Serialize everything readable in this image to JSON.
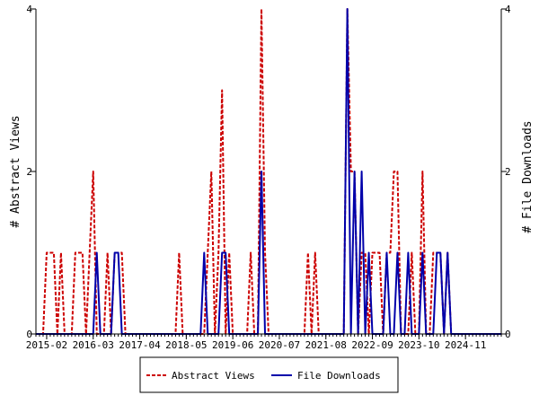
{
  "chart_data": {
    "type": "line",
    "x_axis": {
      "tick_labels": [
        "2015-02",
        "2016-03",
        "2017-04",
        "2018-05",
        "2019-06",
        "2020-07",
        "2021-08",
        "2022-09",
        "2023-10",
        "2024-11"
      ],
      "start": "2014-11",
      "end": "2025-09"
    },
    "y_left": {
      "label": "# Abstract Views",
      "ylim": [
        0,
        4
      ],
      "ticks": [
        0,
        2,
        4
      ]
    },
    "y_right": {
      "label": "# File Downloads",
      "ylim": [
        0,
        4
      ],
      "ticks": [
        0,
        2,
        4
      ]
    },
    "grid": false,
    "legend": {
      "placement": "bottom-center"
    },
    "series": [
      {
        "name": "Abstract Views",
        "axis": "left",
        "color": "#cc0000",
        "style": "dashed",
        "points": [
          [
            "2014-11",
            0
          ],
          [
            "2014-12",
            0
          ],
          [
            "2015-01",
            0
          ],
          [
            "2015-02",
            1
          ],
          [
            "2015-03",
            1
          ],
          [
            "2015-04",
            1
          ],
          [
            "2015-05",
            0
          ],
          [
            "2015-06",
            1
          ],
          [
            "2015-07",
            0
          ],
          [
            "2015-08",
            0
          ],
          [
            "2015-09",
            0
          ],
          [
            "2015-10",
            1
          ],
          [
            "2015-11",
            1
          ],
          [
            "2015-12",
            1
          ],
          [
            "2016-01",
            0
          ],
          [
            "2016-02",
            1
          ],
          [
            "2016-03",
            2
          ],
          [
            "2016-04",
            0
          ],
          [
            "2016-05",
            0
          ],
          [
            "2016-06",
            0
          ],
          [
            "2016-07",
            1
          ],
          [
            "2016-08",
            0
          ],
          [
            "2016-09",
            1
          ],
          [
            "2016-10",
            1
          ],
          [
            "2016-11",
            1
          ],
          [
            "2016-12",
            0
          ],
          [
            "2017-01",
            0
          ],
          [
            "2017-02",
            0
          ],
          [
            "2017-03",
            0
          ],
          [
            "2017-04",
            0
          ],
          [
            "2017-05",
            0
          ],
          [
            "2017-06",
            0
          ],
          [
            "2017-07",
            0
          ],
          [
            "2017-08",
            0
          ],
          [
            "2017-09",
            0
          ],
          [
            "2017-10",
            0
          ],
          [
            "2017-11",
            0
          ],
          [
            "2017-12",
            0
          ],
          [
            "2018-01",
            0
          ],
          [
            "2018-02",
            0
          ],
          [
            "2018-03",
            1
          ],
          [
            "2018-04",
            0
          ],
          [
            "2018-05",
            0
          ],
          [
            "2018-06",
            0
          ],
          [
            "2018-07",
            0
          ],
          [
            "2018-08",
            0
          ],
          [
            "2018-09",
            0
          ],
          [
            "2018-10",
            0
          ],
          [
            "2018-11",
            1
          ],
          [
            "2018-12",
            2
          ],
          [
            "2019-01",
            0
          ],
          [
            "2019-02",
            1
          ],
          [
            "2019-03",
            3
          ],
          [
            "2019-04",
            0
          ],
          [
            "2019-05",
            1
          ],
          [
            "2019-06",
            0
          ],
          [
            "2019-07",
            0
          ],
          [
            "2019-08",
            0
          ],
          [
            "2019-09",
            0
          ],
          [
            "2019-10",
            0
          ],
          [
            "2019-11",
            1
          ],
          [
            "2019-12",
            0
          ],
          [
            "2020-01",
            0
          ],
          [
            "2020-02",
            4
          ],
          [
            "2020-03",
            1
          ],
          [
            "2020-04",
            0
          ],
          [
            "2020-05",
            0
          ],
          [
            "2020-06",
            0
          ],
          [
            "2020-07",
            0
          ],
          [
            "2020-08",
            0
          ],
          [
            "2020-09",
            0
          ],
          [
            "2020-10",
            0
          ],
          [
            "2020-11",
            0
          ],
          [
            "2020-12",
            0
          ],
          [
            "2021-01",
            0
          ],
          [
            "2021-02",
            0
          ],
          [
            "2021-03",
            1
          ],
          [
            "2021-04",
            0
          ],
          [
            "2021-05",
            1
          ],
          [
            "2021-06",
            0
          ],
          [
            "2021-07",
            0
          ],
          [
            "2021-08",
            0
          ],
          [
            "2021-09",
            0
          ],
          [
            "2021-10",
            0
          ],
          [
            "2021-11",
            0
          ],
          [
            "2021-12",
            0
          ],
          [
            "2022-01",
            0
          ],
          [
            "2022-02",
            4
          ],
          [
            "2022-03",
            2
          ],
          [
            "2022-04",
            2
          ],
          [
            "2022-05",
            0
          ],
          [
            "2022-06",
            1
          ],
          [
            "2022-07",
            1
          ],
          [
            "2022-08",
            0
          ],
          [
            "2022-09",
            1
          ],
          [
            "2022-10",
            1
          ],
          [
            "2022-11",
            1
          ],
          [
            "2022-12",
            0
          ],
          [
            "2023-01",
            1
          ],
          [
            "2023-02",
            1
          ],
          [
            "2023-03",
            2
          ],
          [
            "2023-04",
            2
          ],
          [
            "2023-05",
            0
          ],
          [
            "2023-06",
            0
          ],
          [
            "2023-07",
            0
          ],
          [
            "2023-08",
            1
          ],
          [
            "2023-09",
            0
          ],
          [
            "2023-10",
            0
          ],
          [
            "2023-11",
            2
          ],
          [
            "2023-12",
            0
          ],
          [
            "2024-01",
            0
          ],
          [
            "2024-02",
            1
          ],
          [
            "2024-03",
            1
          ],
          [
            "2024-04",
            1
          ],
          [
            "2024-05",
            0
          ],
          [
            "2024-06",
            1
          ],
          [
            "2024-07",
            0
          ],
          [
            "2024-08",
            0
          ],
          [
            "2024-09",
            0
          ],
          [
            "2024-10",
            0
          ],
          [
            "2024-11",
            0
          ],
          [
            "2024-12",
            0
          ],
          [
            "2025-01",
            0
          ],
          [
            "2025-02",
            0
          ],
          [
            "2025-03",
            0
          ],
          [
            "2025-04",
            0
          ],
          [
            "2025-05",
            0
          ],
          [
            "2025-06",
            0
          ],
          [
            "2025-07",
            0
          ],
          [
            "2025-08",
            0
          ],
          [
            "2025-09",
            0
          ]
        ]
      },
      {
        "name": "File Downloads",
        "axis": "right",
        "color": "#0000aa",
        "style": "solid",
        "points": [
          [
            "2014-11",
            0
          ],
          [
            "2014-12",
            0
          ],
          [
            "2015-01",
            0
          ],
          [
            "2015-02",
            0
          ],
          [
            "2015-03",
            0
          ],
          [
            "2015-04",
            0
          ],
          [
            "2015-05",
            0
          ],
          [
            "2015-06",
            0
          ],
          [
            "2015-07",
            0
          ],
          [
            "2015-08",
            0
          ],
          [
            "2015-09",
            0
          ],
          [
            "2015-10",
            0
          ],
          [
            "2015-11",
            0
          ],
          [
            "2015-12",
            0
          ],
          [
            "2016-01",
            0
          ],
          [
            "2016-02",
            0
          ],
          [
            "2016-03",
            0
          ],
          [
            "2016-04",
            1
          ],
          [
            "2016-05",
            0
          ],
          [
            "2016-06",
            0
          ],
          [
            "2016-07",
            0
          ],
          [
            "2016-08",
            0
          ],
          [
            "2016-09",
            1
          ],
          [
            "2016-10",
            1
          ],
          [
            "2016-11",
            0
          ],
          [
            "2016-12",
            0
          ],
          [
            "2017-01",
            0
          ],
          [
            "2017-02",
            0
          ],
          [
            "2017-03",
            0
          ],
          [
            "2017-04",
            0
          ],
          [
            "2017-05",
            0
          ],
          [
            "2017-06",
            0
          ],
          [
            "2017-07",
            0
          ],
          [
            "2017-08",
            0
          ],
          [
            "2017-09",
            0
          ],
          [
            "2017-10",
            0
          ],
          [
            "2017-11",
            0
          ],
          [
            "2017-12",
            0
          ],
          [
            "2018-01",
            0
          ],
          [
            "2018-02",
            0
          ],
          [
            "2018-03",
            0
          ],
          [
            "2018-04",
            0
          ],
          [
            "2018-05",
            0
          ],
          [
            "2018-06",
            0
          ],
          [
            "2018-07",
            0
          ],
          [
            "2018-08",
            0
          ],
          [
            "2018-09",
            0
          ],
          [
            "2018-10",
            1
          ],
          [
            "2018-11",
            0
          ],
          [
            "2018-12",
            0
          ],
          [
            "2019-01",
            0
          ],
          [
            "2019-02",
            0
          ],
          [
            "2019-03",
            1
          ],
          [
            "2019-04",
            1
          ],
          [
            "2019-05",
            0
          ],
          [
            "2019-06",
            0
          ],
          [
            "2019-07",
            0
          ],
          [
            "2019-08",
            0
          ],
          [
            "2019-09",
            0
          ],
          [
            "2019-10",
            0
          ],
          [
            "2019-11",
            0
          ],
          [
            "2019-12",
            0
          ],
          [
            "2020-01",
            0
          ],
          [
            "2020-02",
            2
          ],
          [
            "2020-03",
            0
          ],
          [
            "2020-04",
            0
          ],
          [
            "2020-05",
            0
          ],
          [
            "2020-06",
            0
          ],
          [
            "2020-07",
            0
          ],
          [
            "2020-08",
            0
          ],
          [
            "2020-09",
            0
          ],
          [
            "2020-10",
            0
          ],
          [
            "2020-11",
            0
          ],
          [
            "2020-12",
            0
          ],
          [
            "2021-01",
            0
          ],
          [
            "2021-02",
            0
          ],
          [
            "2021-03",
            0
          ],
          [
            "2021-04",
            0
          ],
          [
            "2021-05",
            0
          ],
          [
            "2021-06",
            0
          ],
          [
            "2021-07",
            0
          ],
          [
            "2021-08",
            0
          ],
          [
            "2021-09",
            0
          ],
          [
            "2021-10",
            0
          ],
          [
            "2021-11",
            0
          ],
          [
            "2021-12",
            0
          ],
          [
            "2022-01",
            0
          ],
          [
            "2022-02",
            4
          ],
          [
            "2022-03",
            0
          ],
          [
            "2022-04",
            2
          ],
          [
            "2022-05",
            0
          ],
          [
            "2022-06",
            2
          ],
          [
            "2022-07",
            0
          ],
          [
            "2022-08",
            1
          ],
          [
            "2022-09",
            0
          ],
          [
            "2022-10",
            0
          ],
          [
            "2022-11",
            0
          ],
          [
            "2022-12",
            0
          ],
          [
            "2023-01",
            1
          ],
          [
            "2023-02",
            0
          ],
          [
            "2023-03",
            0
          ],
          [
            "2023-04",
            1
          ],
          [
            "2023-05",
            0
          ],
          [
            "2023-06",
            0
          ],
          [
            "2023-07",
            1
          ],
          [
            "2023-08",
            0
          ],
          [
            "2023-09",
            0
          ],
          [
            "2023-10",
            0
          ],
          [
            "2023-11",
            1
          ],
          [
            "2023-12",
            0
          ],
          [
            "2024-01",
            0
          ],
          [
            "2024-02",
            0
          ],
          [
            "2024-03",
            1
          ],
          [
            "2024-04",
            1
          ],
          [
            "2024-05",
            0
          ],
          [
            "2024-06",
            1
          ],
          [
            "2024-07",
            0
          ],
          [
            "2024-08",
            0
          ],
          [
            "2024-09",
            0
          ],
          [
            "2024-10",
            0
          ],
          [
            "2024-11",
            0
          ],
          [
            "2024-12",
            0
          ],
          [
            "2025-01",
            0
          ],
          [
            "2025-02",
            0
          ],
          [
            "2025-03",
            0
          ],
          [
            "2025-04",
            0
          ],
          [
            "2025-05",
            0
          ],
          [
            "2025-06",
            0
          ],
          [
            "2025-07",
            0
          ],
          [
            "2025-08",
            0
          ],
          [
            "2025-09",
            0
          ]
        ]
      }
    ]
  }
}
